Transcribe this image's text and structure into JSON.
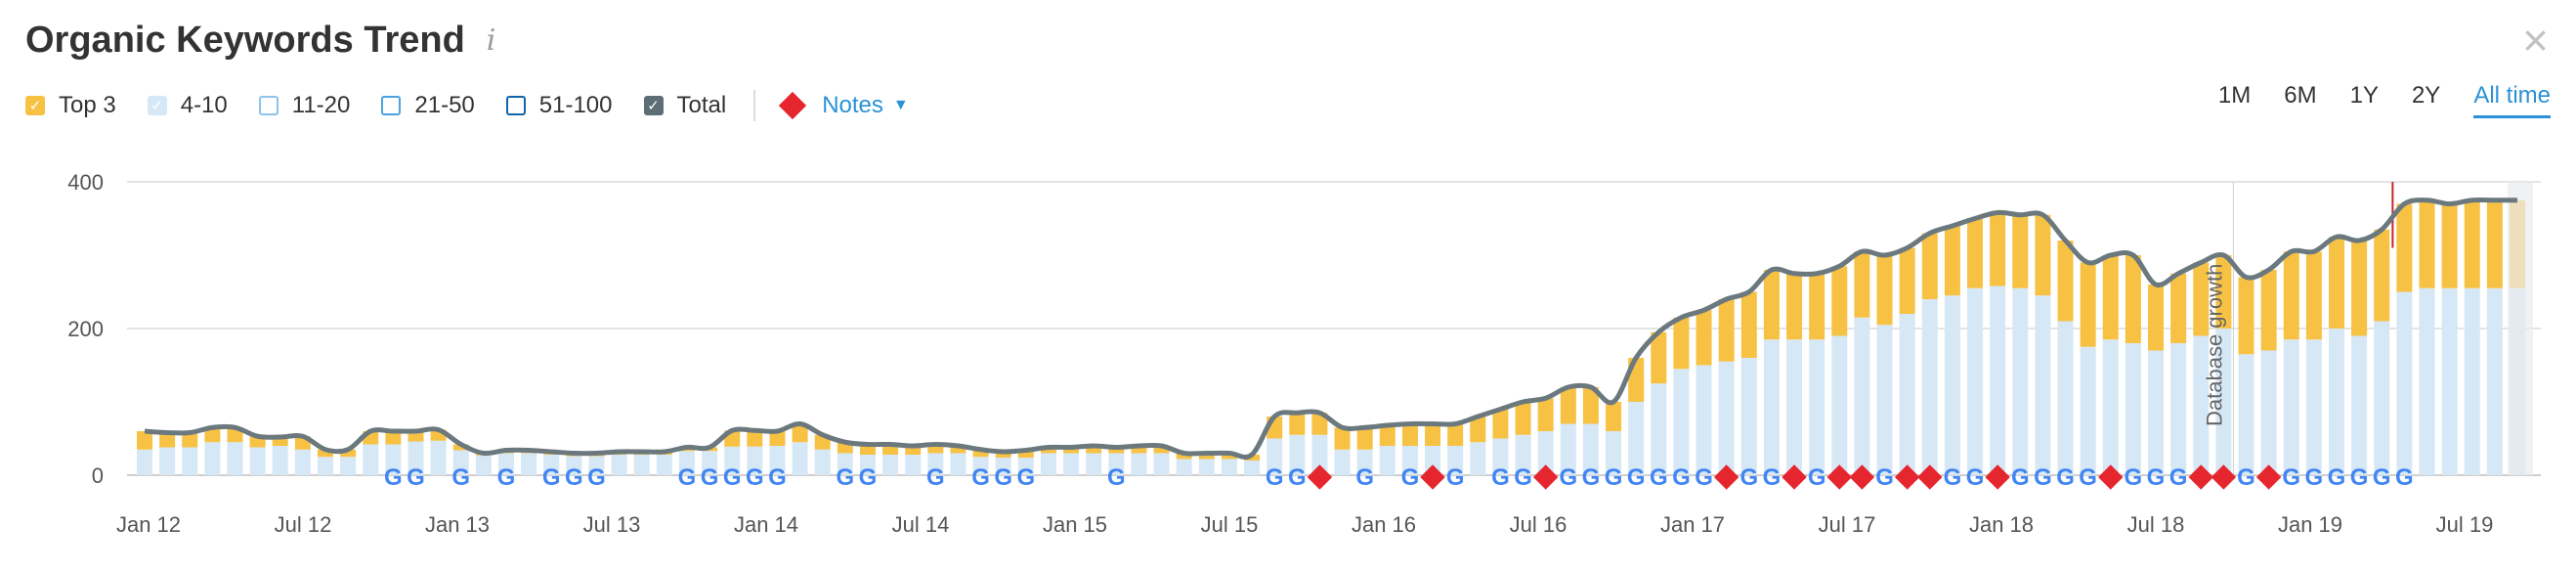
{
  "title": "Organic Keywords Trend",
  "info_icon": "i",
  "close_icon": "×",
  "legend": [
    {
      "label": "Top 3",
      "checked": true,
      "style": "filled",
      "color": "#f7c244"
    },
    {
      "label": "4-10",
      "checked": true,
      "style": "light",
      "color": "#d6e8f6"
    },
    {
      "label": "11-20",
      "checked": false,
      "style": "outline",
      "color": "#8cc4ea"
    },
    {
      "label": "21-50",
      "checked": false,
      "style": "outline",
      "color": "#4aa3e0"
    },
    {
      "label": "51-100",
      "checked": false,
      "style": "outline",
      "color": "#1465a8"
    },
    {
      "label": "Total",
      "checked": true,
      "style": "filled",
      "color": "#5e6e75"
    }
  ],
  "notes_label": "Notes",
  "periods": [
    "1M",
    "6M",
    "1Y",
    "2Y",
    "All time"
  ],
  "active_period": "All time",
  "chart_data": {
    "type": "bar",
    "x_ticks": [
      "Jan 12",
      "Jul 12",
      "Jan 13",
      "Jul 13",
      "Jan 14",
      "Jul 14",
      "Jan 15",
      "Jul 15",
      "Jan 16",
      "Jul 16",
      "Jan 17",
      "Jul 17",
      "Jan 18",
      "Jul 18",
      "Jan 19",
      "Jul 19"
    ],
    "y_ticks": [
      0,
      200,
      400
    ],
    "ylim": [
      0,
      400
    ],
    "grid": true,
    "annotation": "Database growth",
    "colors": {
      "top3": "#f7c244",
      "top4_10": "#d6e8f6",
      "total": "#6b797f",
      "note": "#e6262e"
    },
    "series": [
      {
        "name": "Top 3",
        "values": [
          25,
          20,
          20,
          20,
          20,
          15,
          12,
          18,
          10,
          10,
          18,
          18,
          14,
          15,
          8,
          3,
          4,
          4,
          4,
          4,
          4,
          4,
          4,
          4,
          5,
          5,
          22,
          22,
          20,
          25,
          20,
          15,
          14,
          14,
          12,
          12,
          10,
          10,
          8,
          10,
          8,
          8,
          10,
          8,
          10,
          10,
          8,
          8,
          8,
          8,
          30,
          30,
          30,
          30,
          30,
          28,
          30,
          30,
          30,
          35,
          40,
          45,
          45,
          50,
          50,
          40,
          60,
          70,
          70,
          75,
          85,
          90,
          95,
          90,
          90,
          95,
          90,
          95,
          90,
          90,
          95,
          95,
          100,
          100,
          110,
          110,
          115,
          115,
          120,
          90,
          95,
          100,
          100,
          105,
          110,
          120,
          120,
          125,
          130,
          125,
          120,
          120,
          115,
          120,
          120,
          120
        ]
      },
      {
        "name": "4-10",
        "values": [
          35,
          38,
          38,
          45,
          45,
          38,
          40,
          35,
          25,
          25,
          42,
          42,
          46,
          47,
          34,
          27,
          30,
          30,
          28,
          26,
          26,
          28,
          28,
          28,
          33,
          33,
          39,
          39,
          40,
          45,
          35,
          30,
          28,
          28,
          28,
          30,
          30,
          25,
          24,
          24,
          30,
          30,
          30,
          30,
          30,
          30,
          22,
          22,
          22,
          20,
          50,
          55,
          55,
          35,
          35,
          40,
          40,
          40,
          40,
          45,
          50,
          55,
          60,
          70,
          70,
          60,
          100,
          125,
          145,
          150,
          155,
          160,
          185,
          185,
          185,
          190,
          215,
          205,
          220,
          240,
          245,
          255,
          258,
          255,
          245,
          210,
          175,
          185,
          180,
          170,
          180,
          190,
          200,
          165,
          170,
          185,
          185,
          200,
          190,
          210,
          250,
          255,
          255,
          255,
          255,
          255
        ]
      }
    ]
  },
  "google_markers": [
    11,
    12,
    14,
    16,
    18,
    19,
    20,
    24,
    25,
    26,
    27,
    28,
    31,
    32,
    35,
    37,
    38,
    39,
    43,
    50,
    51,
    54,
    56,
    58,
    60,
    61,
    62,
    63,
    64,
    65,
    66,
    67,
    68,
    69,
    70,
    71,
    72,
    73,
    74,
    75,
    76,
    77,
    80,
    81,
    83,
    84,
    85,
    86,
    88,
    89,
    90,
    93,
    95,
    96,
    97,
    98,
    99,
    100
  ],
  "note_markers": [
    52,
    57,
    62,
    70,
    73,
    75,
    76,
    79,
    78,
    82,
    87,
    91,
    92,
    94
  ]
}
